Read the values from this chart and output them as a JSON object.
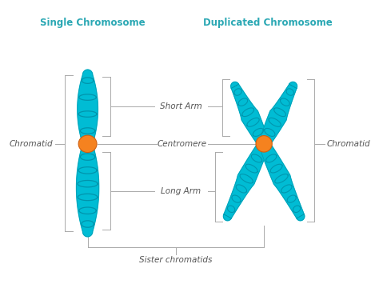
{
  "title_left": "Single Chromosome",
  "title_right": "Duplicated Chromosome",
  "title_color": "#2ba8b4",
  "title_fontsize": 8.5,
  "label_color": "#555555",
  "label_fontsize": 7.5,
  "chromosome_fill": "#00bcd4",
  "chromosome_edge": "#009ab0",
  "centromere_fill": "#f5821f",
  "centromere_edge": "#d06010",
  "coil_color": "#0090a8",
  "line_color": "#aaaaaa",
  "background": "#ffffff",
  "labels": {
    "short_arm": "Short Arm",
    "centromere": "Centromere",
    "long_arm": "Long Arm",
    "chromatid_left": "Chromatid",
    "chromatid_right": "Chromatid",
    "sister": "Sister chromatids"
  },
  "figsize": [
    4.74,
    3.55
  ],
  "dpi": 100
}
